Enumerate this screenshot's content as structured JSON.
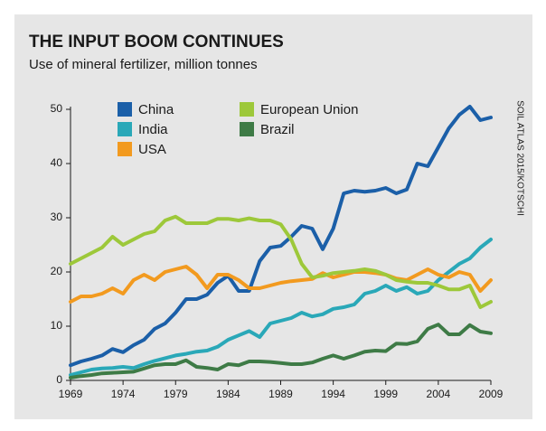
{
  "chart_data": {
    "type": "line",
    "title": "THE INPUT BOOM CONTINUES",
    "subtitle": "Use of mineral fertilizer, million tonnes",
    "source": "SOIL ATLAS 2015/KOTSCHI",
    "x": [
      1969,
      1970,
      1971,
      1972,
      1973,
      1974,
      1975,
      1976,
      1977,
      1978,
      1979,
      1980,
      1981,
      1982,
      1983,
      1984,
      1985,
      1986,
      1987,
      1988,
      1989,
      1990,
      1991,
      1992,
      1993,
      1994,
      1995,
      1996,
      1997,
      1998,
      1999,
      2000,
      2001,
      2002,
      2003,
      2004,
      2005,
      2006,
      2007,
      2008,
      2009
    ],
    "xlim": [
      1969,
      2009
    ],
    "xticks": [
      1969,
      1974,
      1979,
      1984,
      1989,
      1994,
      1999,
      2004,
      2009
    ],
    "ylim": [
      0,
      50
    ],
    "yticks": [
      0,
      10,
      20,
      30,
      40,
      50
    ],
    "grid": false,
    "series": [
      {
        "name": "China",
        "color": "#1b5fa8",
        "values": [
          2.8,
          3.5,
          4,
          4.6,
          5.8,
          5.2,
          6.5,
          7.5,
          9.5,
          10.5,
          12.5,
          15,
          15,
          15.8,
          18,
          19.3,
          16.5,
          16.5,
          22,
          24.5,
          24.8,
          26.5,
          28.5,
          28,
          24.2,
          28,
          34.5,
          35,
          34.8,
          35,
          35.5,
          34.5,
          35.2,
          40,
          39.5,
          43,
          46.5,
          49,
          50.5,
          48,
          48.5
        ]
      },
      {
        "name": "India",
        "color": "#2aa8b8",
        "values": [
          1,
          1.5,
          2,
          2.2,
          2.3,
          2.5,
          2.3,
          3,
          3.6,
          4.1,
          4.6,
          4.9,
          5.3,
          5.5,
          6.2,
          7.5,
          8.3,
          9.1,
          8,
          10.5,
          11,
          11.5,
          12.5,
          11.8,
          12.2,
          13.2,
          13.5,
          14,
          16,
          16.5,
          17.5,
          16.5,
          17.2,
          16,
          16.5,
          18.5,
          20,
          21.5,
          22.5,
          24.5,
          26
        ]
      },
      {
        "name": "USA",
        "color": "#f29a1f",
        "values": [
          14.5,
          15.5,
          15.5,
          16,
          17,
          16,
          18.5,
          19.5,
          18.5,
          20,
          20.5,
          21,
          19.5,
          17,
          19.5,
          19.5,
          18.5,
          17,
          17,
          17.5,
          18,
          18.3,
          18.5,
          18.7,
          19.8,
          19,
          19.5,
          20,
          20,
          19.8,
          19.5,
          18.8,
          18.5,
          19.5,
          20.5,
          19.5,
          19,
          20,
          19.5,
          16.5,
          18.5
        ]
      },
      {
        "name": "European Union",
        "color": "#9dc83a",
        "values": [
          21.5,
          22.5,
          23.5,
          24.5,
          26.5,
          25,
          26,
          27,
          27.5,
          29.5,
          30.2,
          29,
          29,
          29,
          29.8,
          29.8,
          29.5,
          29.9,
          29.5,
          29.5,
          28.8,
          26,
          21.5,
          19,
          19.3,
          19.8,
          20,
          20.2,
          20.5,
          20.2,
          19.5,
          18.5,
          18.2,
          18,
          18,
          17.5,
          16.8,
          16.8,
          17.5,
          13.5,
          14.5
        ]
      },
      {
        "name": "Brazil",
        "color": "#3e7b46",
        "values": [
          0.5,
          0.8,
          1,
          1.3,
          1.4,
          1.5,
          1.6,
          2.2,
          2.8,
          3,
          3,
          3.7,
          2.5,
          2.3,
          2,
          3,
          2.8,
          3.5,
          3.5,
          3.4,
          3.2,
          3,
          3,
          3.3,
          4,
          4.6,
          4,
          4.6,
          5.3,
          5.5,
          5.4,
          6.8,
          6.7,
          7.2,
          9.5,
          10.3,
          8.5,
          8.5,
          10.2,
          9,
          8.7
        ]
      }
    ]
  }
}
